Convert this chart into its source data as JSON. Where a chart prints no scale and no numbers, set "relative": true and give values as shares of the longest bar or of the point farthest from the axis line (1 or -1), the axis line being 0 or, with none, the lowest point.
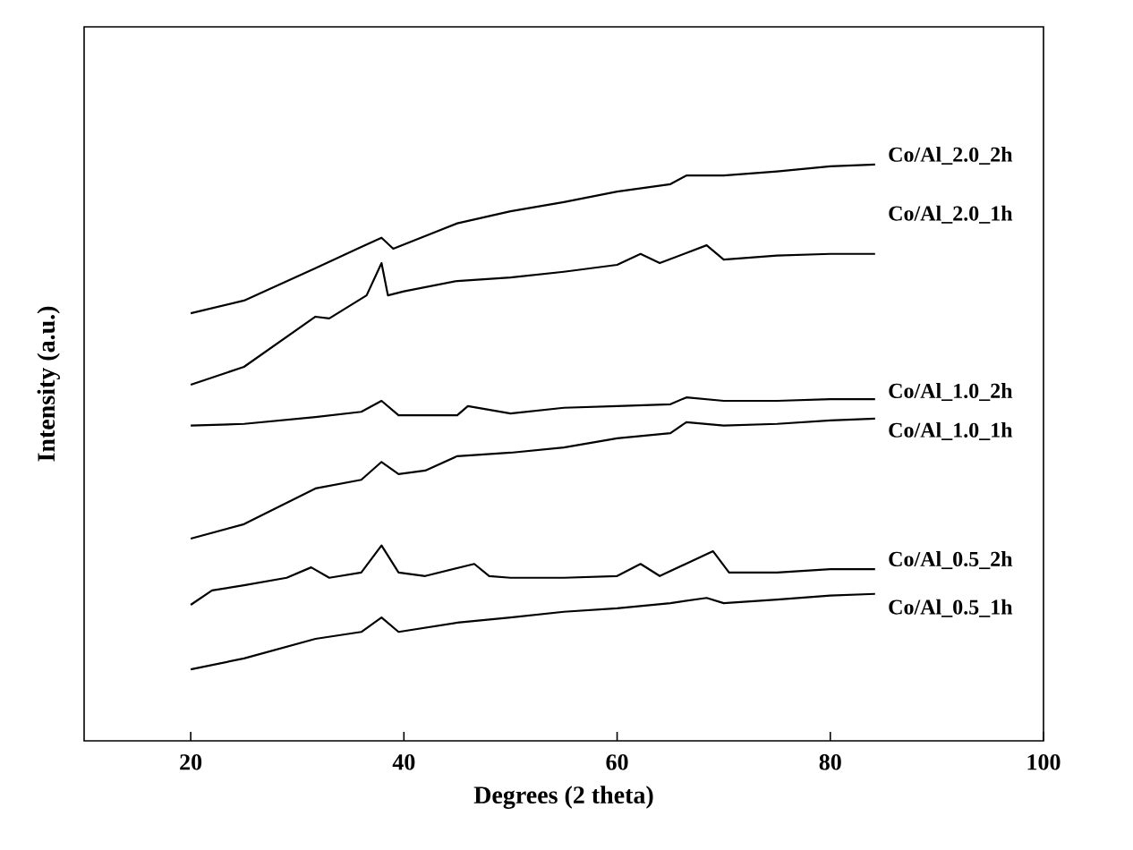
{
  "chart_data": {
    "type": "line",
    "relative": true,
    "xlabel": "Degrees (2 theta)",
    "ylabel": "Intensity (a.u.)",
    "xlim": [
      10,
      100
    ],
    "xticks": [
      20,
      40,
      60,
      80,
      100
    ],
    "grid": false,
    "legend": false,
    "marker": "none",
    "line_style": "solid",
    "tick_labels": "x",
    "series": [
      {
        "name": "Co/Al_2.0_2h",
        "color": "#000000",
        "x": [
          20,
          25,
          31.7,
          36,
          37.9,
          39,
          45,
          50,
          55,
          60,
          65,
          66.5,
          70,
          75,
          80,
          84.2
        ],
        "values": [
          0.742,
          0.764,
          0.82,
          0.857,
          0.873,
          0.854,
          0.898,
          0.919,
          0.935,
          0.953,
          0.966,
          0.981,
          0.981,
          0.988,
          0.997,
          1.0
        ]
      },
      {
        "name": "Co/Al_2.0_1h",
        "color": "#000000",
        "x": [
          20,
          25,
          31.7,
          33,
          36.5,
          37.9,
          38.5,
          40,
          45,
          50,
          55,
          60,
          62.2,
          64,
          68.4,
          70,
          75,
          80,
          84.2
        ],
        "values": [
          0.618,
          0.649,
          0.736,
          0.733,
          0.773,
          0.829,
          0.773,
          0.78,
          0.798,
          0.804,
          0.814,
          0.826,
          0.845,
          0.829,
          0.86,
          0.835,
          0.842,
          0.845,
          0.845
        ]
      },
      {
        "name": "Co/Al_1.0_2h",
        "color": "#000000",
        "x": [
          20,
          25,
          31.7,
          36,
          37.9,
          39.5,
          45,
          46,
          50,
          55,
          60,
          65,
          66.5,
          70,
          75,
          80,
          84.2
        ],
        "values": [
          0.547,
          0.55,
          0.562,
          0.571,
          0.59,
          0.565,
          0.565,
          0.581,
          0.568,
          0.578,
          0.581,
          0.584,
          0.596,
          0.59,
          0.59,
          0.593,
          0.593
        ]
      },
      {
        "name": "Co/Al_1.0_1h",
        "color": "#000000",
        "x": [
          20,
          25,
          31.7,
          36,
          37.9,
          39.5,
          42,
          45,
          50,
          55,
          60,
          65,
          66.5,
          70,
          75,
          80,
          84.2
        ],
        "values": [
          0.351,
          0.376,
          0.438,
          0.453,
          0.484,
          0.463,
          0.469,
          0.494,
          0.5,
          0.509,
          0.525,
          0.534,
          0.553,
          0.547,
          0.55,
          0.556,
          0.559
        ]
      },
      {
        "name": "Co/Al_0.5_2h",
        "color": "#000000",
        "x": [
          20,
          22,
          25,
          29,
          31.3,
          33,
          36,
          37.9,
          39.5,
          42,
          46.6,
          48,
          50,
          55,
          60,
          62.2,
          64,
          69,
          70.5,
          75,
          80,
          84.2
        ],
        "values": [
          0.236,
          0.261,
          0.27,
          0.283,
          0.301,
          0.283,
          0.292,
          0.339,
          0.292,
          0.286,
          0.307,
          0.286,
          0.283,
          0.283,
          0.286,
          0.307,
          0.286,
          0.329,
          0.292,
          0.292,
          0.298,
          0.298
        ]
      },
      {
        "name": "Co/Al_0.5_1h",
        "color": "#000000",
        "x": [
          20,
          25,
          31.7,
          36,
          37.9,
          39.5,
          45,
          50,
          55,
          60,
          65,
          68.4,
          70,
          75,
          80,
          84.2
        ],
        "values": [
          0.124,
          0.143,
          0.177,
          0.189,
          0.214,
          0.189,
          0.205,
          0.214,
          0.224,
          0.23,
          0.239,
          0.248,
          0.239,
          0.245,
          0.252,
          0.255
        ]
      }
    ]
  }
}
